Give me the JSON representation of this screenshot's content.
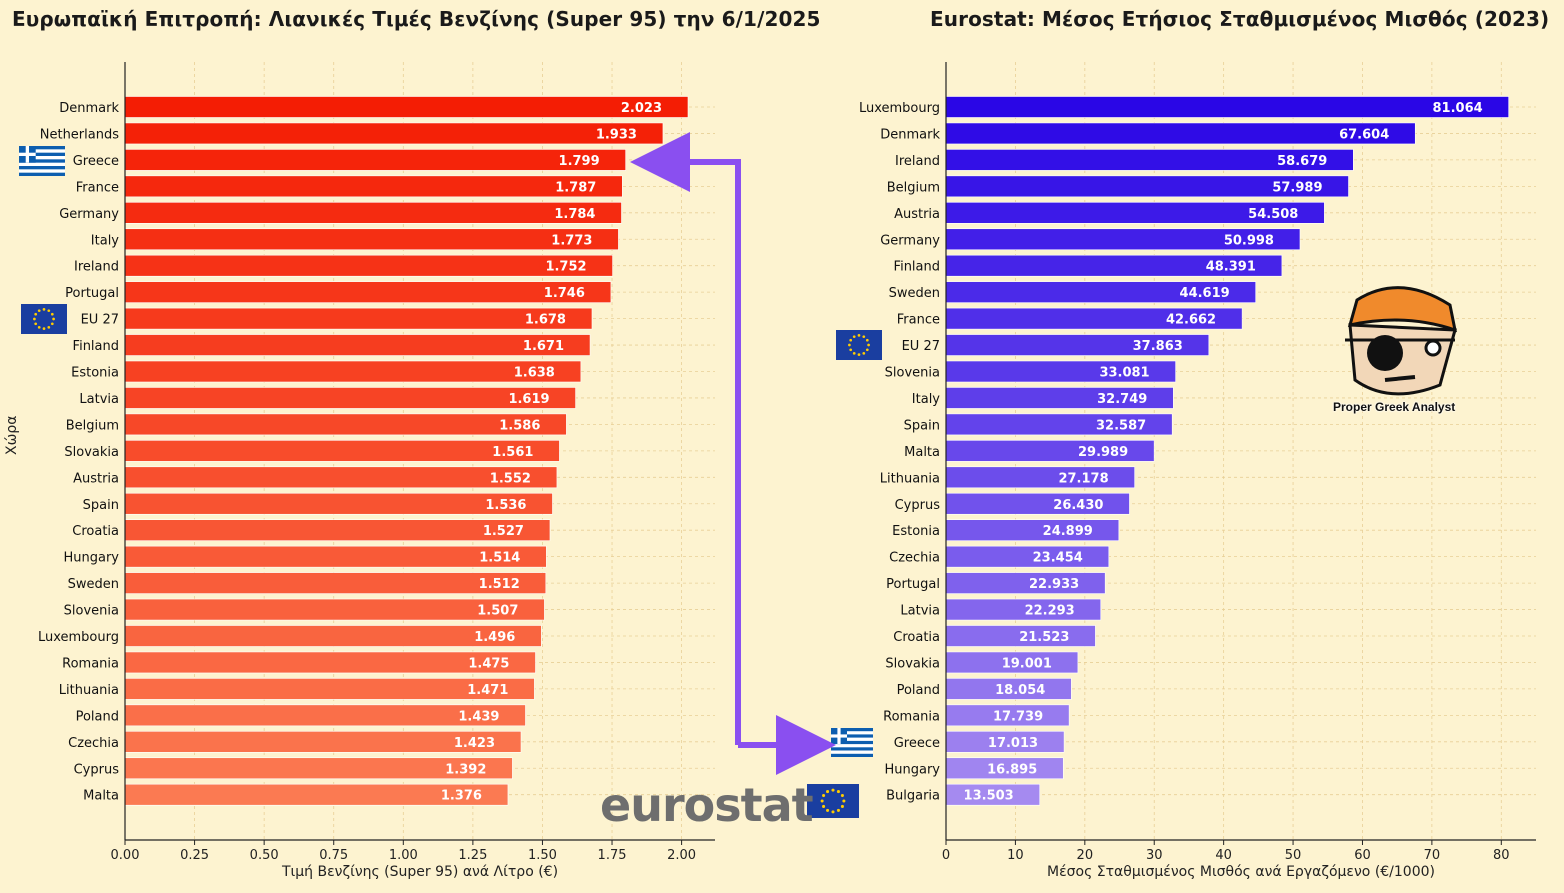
{
  "colors": {
    "background": "#fdf3d0",
    "left_top": "#f41d04",
    "left_bottom": "#fb7a52",
    "right_top": "#2a06e6",
    "right_bottom": "#a58af0",
    "arrow": "#8a4ff0",
    "grid": "#e8cf96",
    "flag_blue": "#0d5eaf",
    "eu_blue": "#1a3ea0",
    "eu_star": "#ffcc00"
  },
  "chart_data": [
    {
      "type": "bar",
      "orientation": "horizontal",
      "title": "Ευρωπαϊκή Επιτροπή: Λιανικές Τιμές Βενζίνης (Super 95) την 6/1/2025",
      "xlabel": "Τιμή Βενζίνης (Super 95) ανά Λίτρο (€)",
      "ylabel": "Χώρα",
      "xlim": [
        0,
        2.12
      ],
      "xticks": [
        "0.00",
        "0.25",
        "0.50",
        "0.75",
        "1.00",
        "1.25",
        "1.50",
        "1.75",
        "2.00"
      ],
      "categories": [
        "Denmark",
        "Netherlands",
        "Greece",
        "France",
        "Germany",
        "Italy",
        "Ireland",
        "Portugal",
        "EU 27",
        "Finland",
        "Estonia",
        "Latvia",
        "Belgium",
        "Slovakia",
        "Austria",
        "Spain",
        "Croatia",
        "Hungary",
        "Sweden",
        "Slovenia",
        "Luxembourg",
        "Romania",
        "Lithuania",
        "Poland",
        "Czechia",
        "Cyprus",
        "Malta"
      ],
      "values": [
        2.023,
        1.933,
        1.799,
        1.787,
        1.784,
        1.773,
        1.752,
        1.746,
        1.678,
        1.671,
        1.638,
        1.619,
        1.586,
        1.561,
        1.552,
        1.536,
        1.527,
        1.514,
        1.512,
        1.507,
        1.496,
        1.475,
        1.471,
        1.439,
        1.423,
        1.392,
        1.376
      ],
      "value_labels": [
        "2.023",
        "1.933",
        "1.799",
        "1.787",
        "1.784",
        "1.773",
        "1.752",
        "1.746",
        "1.678",
        "1.671",
        "1.638",
        "1.619",
        "1.586",
        "1.561",
        "1.552",
        "1.536",
        "1.527",
        "1.514",
        "1.512",
        "1.507",
        "1.496",
        "1.475",
        "1.471",
        "1.439",
        "1.423",
        "1.392",
        "1.376"
      ],
      "grid": true
    },
    {
      "type": "bar",
      "orientation": "horizontal",
      "title": "Eurostat: Μέσος Ετήσιος Σταθμισμένος Μισθός (2023)",
      "xlabel": "Μέσος Σταθμισμένος Μισθός ανά Εργαζόμενο (€/1000)",
      "xlim": [
        0,
        85
      ],
      "xticks": [
        "0",
        "10",
        "20",
        "30",
        "40",
        "50",
        "60",
        "70",
        "80"
      ],
      "categories": [
        "Luxembourg",
        "Denmark",
        "Ireland",
        "Belgium",
        "Austria",
        "Germany",
        "Finland",
        "Sweden",
        "France",
        "EU 27",
        "Slovenia",
        "Italy",
        "Spain",
        "Malta",
        "Lithuania",
        "Cyprus",
        "Estonia",
        "Czechia",
        "Portugal",
        "Latvia",
        "Croatia",
        "Slovakia",
        "Poland",
        "Romania",
        "Greece",
        "Hungary",
        "Bulgaria"
      ],
      "values": [
        81.064,
        67.604,
        58.679,
        57.989,
        54.508,
        50.998,
        48.391,
        44.619,
        42.662,
        37.863,
        33.081,
        32.749,
        32.587,
        29.989,
        27.178,
        26.43,
        24.899,
        23.454,
        22.933,
        22.293,
        21.523,
        19.001,
        18.054,
        17.739,
        17.013,
        16.895,
        13.503
      ],
      "value_labels": [
        "81.064",
        "67.604",
        "58.679",
        "57.989",
        "54.508",
        "50.998",
        "48.391",
        "44.619",
        "42.662",
        "37.863",
        "33.081",
        "32.749",
        "32.587",
        "29.989",
        "27.178",
        "26.430",
        "24.899",
        "23.454",
        "22.933",
        "22.293",
        "21.523",
        "19.001",
        "18.054",
        "17.739",
        "17.013",
        "16.895",
        "13.503"
      ],
      "grid": true
    }
  ],
  "annotations": {
    "logo_text": "eurostat",
    "analyst_caption": "Proper Greek Analyst",
    "arrow_from": "Greece (petrol price)",
    "arrow_to": "Greece (wage)"
  }
}
